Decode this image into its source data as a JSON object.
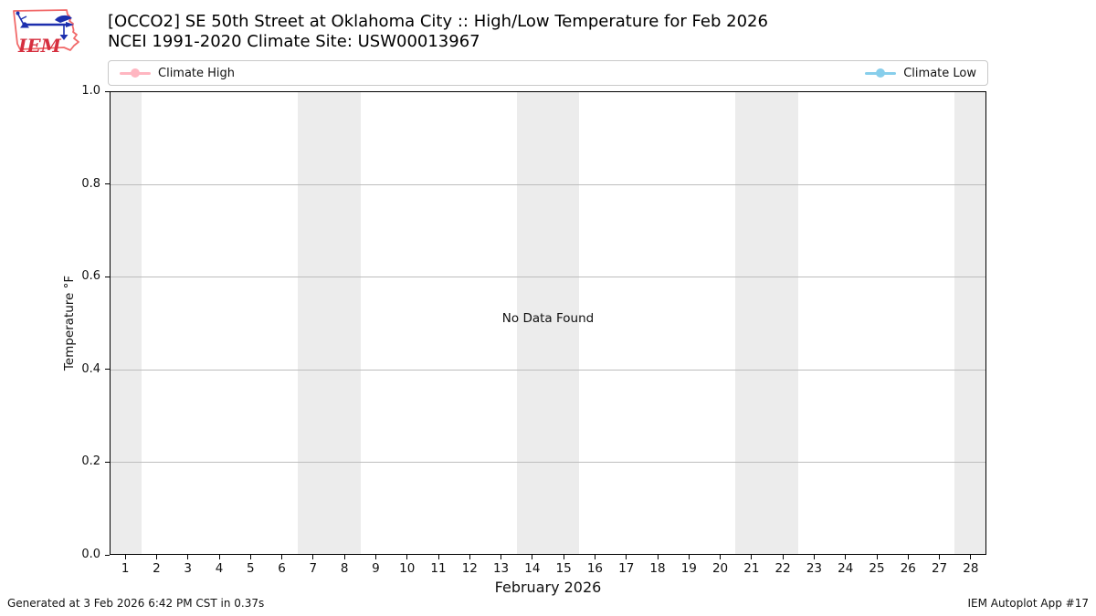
{
  "header": {
    "logo": {
      "text": "IEM"
    },
    "title_line1": "[OCCO2] SE 50th Street at Oklahoma City :: High/Low Temperature for Feb 2026",
    "title_line2": "NCEI 1991-2020 Climate Site: USW00013967"
  },
  "legend": {
    "items": [
      {
        "label": "Climate High",
        "color": "#FFB6C1"
      },
      {
        "label": "Climate Low",
        "color": "#87CEEB"
      }
    ]
  },
  "chart_data": {
    "type": "line",
    "title": "[OCCO2] SE 50th Street at Oklahoma City :: High/Low Temperature for Feb 2026",
    "subtitle": "NCEI 1991-2020 Climate Site: USW00013967",
    "xlabel": "February 2026",
    "ylabel": "Temperature °F",
    "x_ticks": [
      "1",
      "2",
      "3",
      "4",
      "5",
      "6",
      "7",
      "8",
      "9",
      "10",
      "11",
      "12",
      "13",
      "14",
      "15",
      "16",
      "17",
      "18",
      "19",
      "20",
      "21",
      "22",
      "23",
      "24",
      "25",
      "26",
      "27",
      "28"
    ],
    "y_ticks": [
      "0.0",
      "0.2",
      "0.4",
      "0.6",
      "0.8",
      "1.0"
    ],
    "y_gridlines": [
      0.2,
      0.4,
      0.6,
      0.8
    ],
    "ylim": [
      0.0,
      1.0
    ],
    "grid": "horizontal",
    "legend_position": "top",
    "series": [
      {
        "name": "Climate High",
        "color": "#FFB6C1",
        "values": []
      },
      {
        "name": "Climate Low",
        "color": "#87CEEB",
        "values": []
      }
    ],
    "no_data_message": "No Data Found",
    "weekend_band_days": [
      [
        1,
        1
      ],
      [
        7,
        8
      ],
      [
        14,
        15
      ],
      [
        21,
        22
      ],
      [
        28,
        28
      ]
    ],
    "weekend_band_color": "#ECECEC"
  },
  "footer": {
    "left": "Generated at 3 Feb 2026 6:42 PM CST in 0.37s",
    "right": "IEM Autoplot App #17"
  }
}
